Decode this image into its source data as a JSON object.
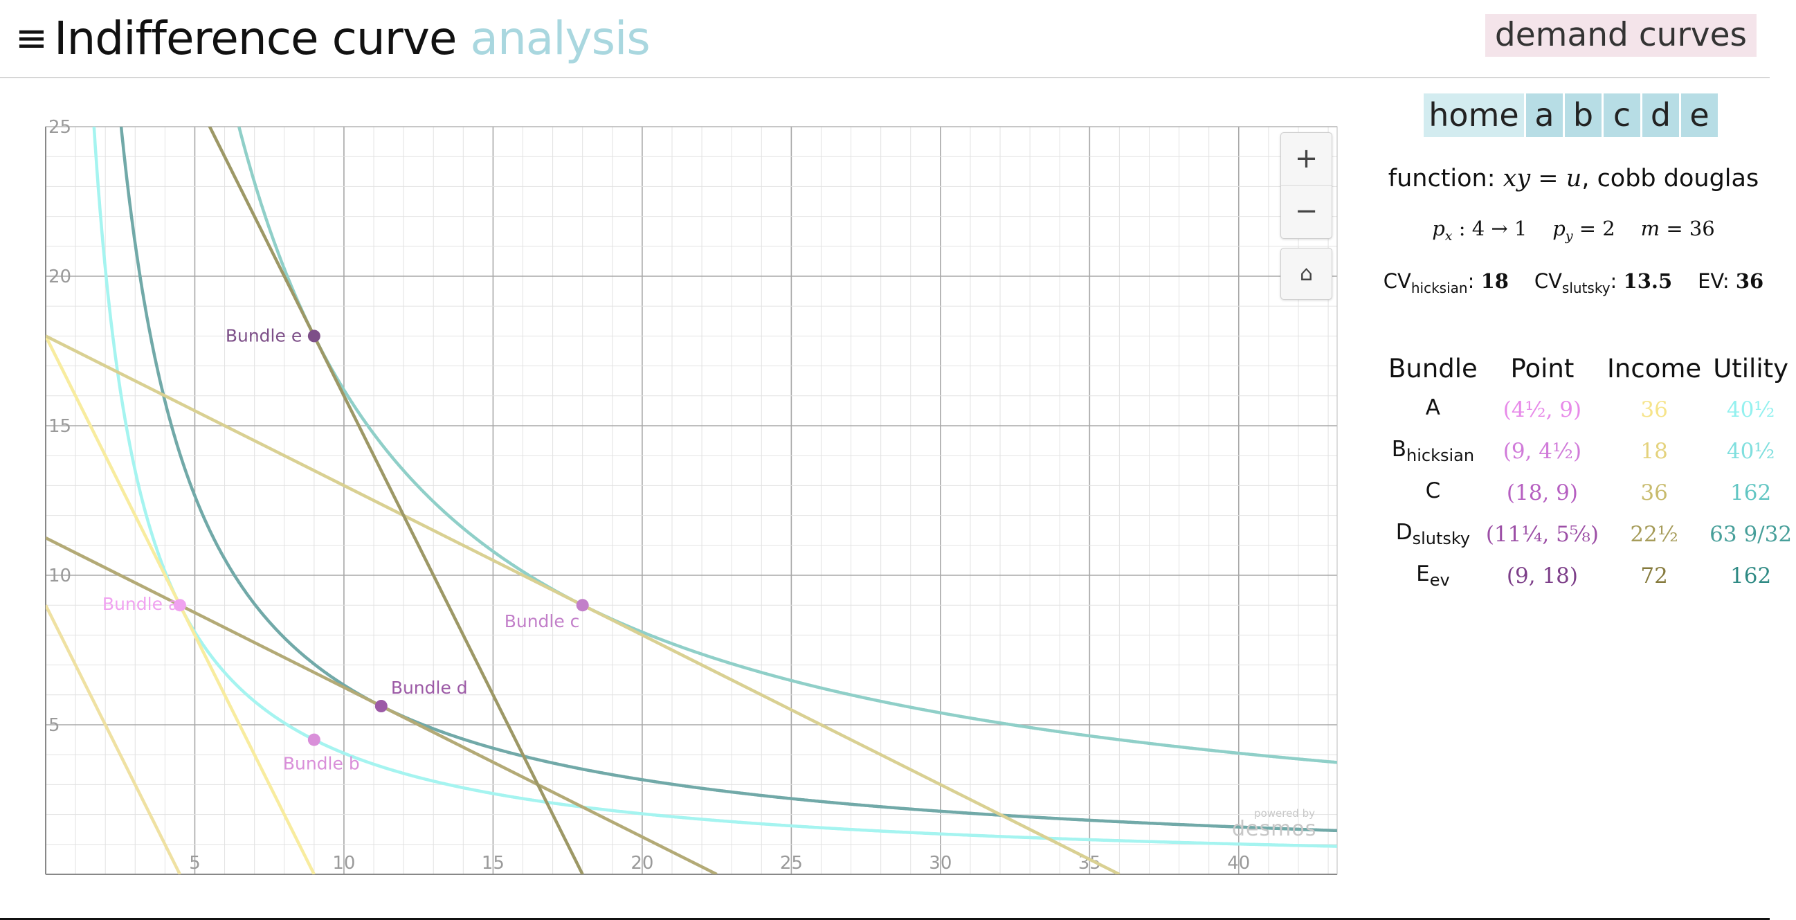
{
  "header": {
    "menu_icon": "hamburger-menu-icon",
    "title_main": "Indifference curve",
    "title_accent": "analysis",
    "demand_button": "demand curves"
  },
  "nav": {
    "tabs": [
      "home",
      "a",
      "b",
      "c",
      "d",
      "e"
    ]
  },
  "info": {
    "function_prefix": "function:",
    "function_math": "xy = u",
    "function_suffix": ", cobb douglas",
    "px_label": "p",
    "px_sub": "x",
    "px_value": ": 4 → 1",
    "py_label": "p",
    "py_sub": "y",
    "py_value": "= 2",
    "m_label": "m",
    "m_value": "= 36",
    "cv_hicksian_label": "CV",
    "cv_hicksian_sub": "hicksian",
    "cv_hicksian_value": "18",
    "cv_slutsky_label": "CV",
    "cv_slutsky_sub": "slutsky",
    "cv_slutsky_value": "13.5",
    "ev_label": "EV:",
    "ev_value": "36"
  },
  "table": {
    "headers": [
      "Bundle",
      "Point",
      "Income",
      "Utility"
    ],
    "rows": [
      {
        "bundle": "A",
        "sub": "",
        "point": "(4½, 9)",
        "income": "36",
        "utility": "40½",
        "point_color": "#e78ae9",
        "income_color": "#f6e48a",
        "utility_color": "#93f1ef"
      },
      {
        "bundle": "B",
        "sub": "hicksian",
        "point": "(9, 4½)",
        "income": "18",
        "utility": "40½",
        "point_color": "#d07ad9",
        "income_color": "#e4d27c",
        "utility_color": "#7fdfde"
      },
      {
        "bundle": "C",
        "sub": "",
        "point": "(18, 9)",
        "income": "36",
        "utility": "162",
        "point_color": "#b65fc1",
        "income_color": "#c8bb6d",
        "utility_color": "#62c6c3"
      },
      {
        "bundle": "D",
        "sub": "slutsky",
        "point": "(11¼, 5⅝)",
        "income": "22½",
        "utility": "63 9/32",
        "point_color": "#9c4fa6",
        "income_color": "#a69c5a",
        "utility_color": "#479f9a"
      },
      {
        "bundle": "E",
        "sub": "ev",
        "point": "(9, 18)",
        "income": "72",
        "utility": "162",
        "point_color": "#7d3f89",
        "income_color": "#857a3c",
        "utility_color": "#2f8a84"
      }
    ]
  },
  "controls": {
    "zoom_in": "+",
    "zoom_out": "−",
    "home_icon": "⌂"
  },
  "watermark": {
    "small": "powered by",
    "big": "desmos"
  },
  "chart_data": {
    "type": "line",
    "xlim": [
      0,
      43.3
    ],
    "ylim": [
      0,
      25
    ],
    "x_ticks": [
      5,
      10,
      15,
      20,
      25,
      30,
      35,
      40
    ],
    "y_ticks": [
      5,
      10,
      15,
      20,
      25
    ],
    "grid": true,
    "series": [
      {
        "kind": "indifference",
        "u": 40.5,
        "color": "#a5f4f0"
      },
      {
        "kind": "indifference",
        "u": 63.28125,
        "color": "#71a9a8"
      },
      {
        "kind": "indifference",
        "u": 162,
        "color": "#8fcfc8"
      },
      {
        "kind": "budget",
        "px": 4,
        "py": 2,
        "m": 36,
        "color": "#f8ec9f"
      },
      {
        "kind": "budget",
        "px": 4,
        "py": 2,
        "m": 18,
        "color": "#efe1a2"
      },
      {
        "kind": "budget",
        "px": 1,
        "py": 2,
        "m": 36,
        "color": "#d9d092"
      },
      {
        "kind": "budget",
        "px": 1,
        "py": 2,
        "m": 22.5,
        "color": "#b3aa76"
      },
      {
        "kind": "budget",
        "px": 4,
        "py": 2,
        "m": 72,
        "color": "#9d9866"
      }
    ],
    "points": [
      {
        "label": "Bundle a",
        "x": 4.5,
        "y": 9,
        "color": "#f0a2f0",
        "label_dx": -112,
        "label_dy": 7
      },
      {
        "label": "Bundle b",
        "x": 9,
        "y": 4.5,
        "color": "#d98fd9",
        "label_dx": -45,
        "label_dy": 43
      },
      {
        "label": "Bundle c",
        "x": 18,
        "y": 9,
        "color": "#c27fc9",
        "label_dx": -113,
        "label_dy": 32
      },
      {
        "label": "Bundle d",
        "x": 11.25,
        "y": 5.625,
        "color": "#9c5aa6",
        "label_dx": 14,
        "label_dy": -18
      },
      {
        "label": "Bundle e",
        "x": 9,
        "y": 18,
        "color": "#7d4f88",
        "label_dx": -128,
        "label_dy": 8
      }
    ]
  }
}
